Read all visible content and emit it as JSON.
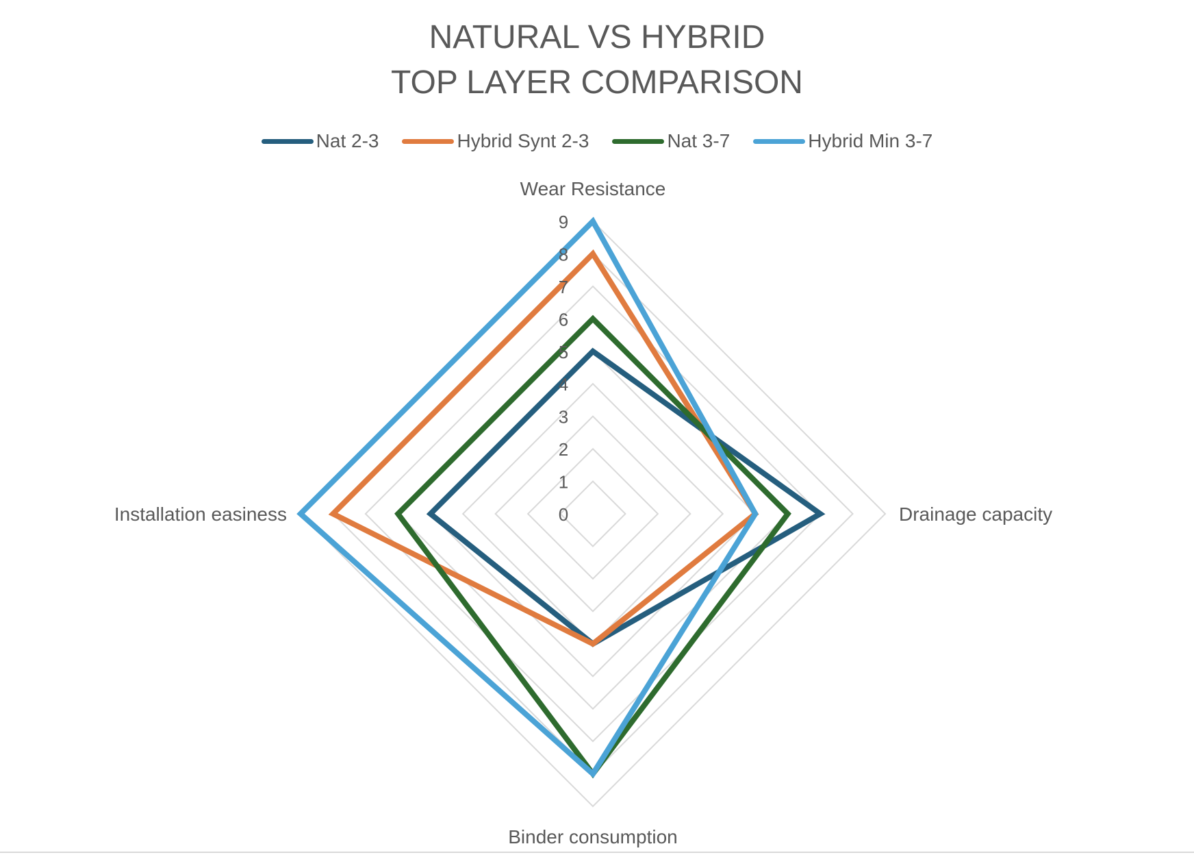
{
  "chart_data": {
    "type": "radar",
    "title_lines": [
      "NATURAL VS HYBRID",
      "TOP LAYER COMPARISON"
    ],
    "categories": [
      "Wear Resistance",
      "Drainage capacity",
      "Binder consumption",
      "Installation easiness"
    ],
    "rlim": [
      0,
      9
    ],
    "ticks": [
      "0",
      "1",
      "2",
      "3",
      "4",
      "5",
      "6",
      "7",
      "8",
      "9"
    ],
    "grid": true,
    "legend_position": "top",
    "series": [
      {
        "name": "Nat 2-3",
        "color": "#255E7E",
        "values": [
          5,
          7,
          4,
          5
        ]
      },
      {
        "name": "Hybrid Synt 2-3",
        "color": "#E07B3F",
        "values": [
          8,
          5,
          4,
          8
        ]
      },
      {
        "name": "Nat 3-7",
        "color": "#2E6B2E",
        "values": [
          6,
          6,
          8,
          6
        ]
      },
      {
        "name": "Hybrid Min 3-7",
        "color": "#4BA3D6",
        "values": [
          9,
          5,
          8,
          9
        ]
      }
    ]
  }
}
